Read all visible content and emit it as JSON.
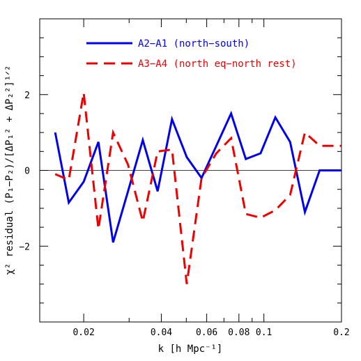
{
  "chart_data": {
    "type": "line",
    "xlabel": "k [h Mpc⁻¹]",
    "ylabel": "χ² residual (P₁−P₂)/[ΔP₁² + ΔP₂²]¹ᐟ²",
    "xscale": "log",
    "xlim": [
      0.0135,
      0.2
    ],
    "ylim": [
      -4,
      4
    ],
    "x_ticks": [
      {
        "value": 0.02,
        "label": "0.02"
      },
      {
        "value": 0.04,
        "label": "0.04"
      },
      {
        "value": 0.06,
        "label": "0.06"
      },
      {
        "value": 0.08,
        "label": "0.08"
      },
      {
        "value": 0.1,
        "label": "0.1"
      },
      {
        "value": 0.2,
        "label": "0.2"
      }
    ],
    "x_minor_ticks": [
      0.03,
      0.05,
      0.07,
      0.09
    ],
    "y_ticks": [
      {
        "value": -2,
        "label": "−2"
      },
      {
        "value": 0,
        "label": "0"
      },
      {
        "value": 2,
        "label": "2"
      }
    ],
    "y_minor_ticks": [
      -3.5,
      -3,
      -2.5,
      -1.5,
      -1,
      -0.5,
      0.5,
      1,
      1.5,
      2.5,
      3,
      3.5
    ],
    "zero_line": true,
    "grid": false,
    "legend_position": "top-left",
    "series": [
      {
        "name": "A2−A1 (north−south)",
        "color": "#0000ee",
        "style": "solid",
        "x": [
          0.0155,
          0.0175,
          0.02,
          0.0228,
          0.026,
          0.0297,
          0.0339,
          0.0387,
          0.044,
          0.0502,
          0.0573,
          0.0654,
          0.0746,
          0.0851,
          0.0971,
          0.1108,
          0.1264,
          0.1442,
          0.1645,
          0.1876,
          0.2
        ],
        "values": [
          1.0,
          -0.85,
          -0.3,
          0.75,
          -1.9,
          -0.55,
          0.8,
          -0.55,
          1.35,
          0.35,
          -0.2,
          0.65,
          1.5,
          0.3,
          0.45,
          1.4,
          0.75,
          -1.1,
          0.0,
          0.0,
          0.0
        ]
      },
      {
        "name": "A3−A4 (north eq−north rest)",
        "color": "#ee0000",
        "style": "dashed",
        "x": [
          0.0155,
          0.0175,
          0.02,
          0.0228,
          0.026,
          0.0297,
          0.0339,
          0.0387,
          0.044,
          0.0502,
          0.0573,
          0.0654,
          0.0746,
          0.0851,
          0.0971,
          0.1108,
          0.1264,
          0.1442,
          0.1645,
          0.1876,
          0.2
        ],
        "values": [
          -0.1,
          -0.25,
          2.05,
          -1.55,
          1.0,
          0.15,
          -1.35,
          0.5,
          0.55,
          -3.0,
          -0.2,
          0.45,
          0.85,
          -1.15,
          -1.25,
          -1.05,
          -0.65,
          1.0,
          0.65,
          0.65,
          0.65
        ]
      }
    ]
  }
}
